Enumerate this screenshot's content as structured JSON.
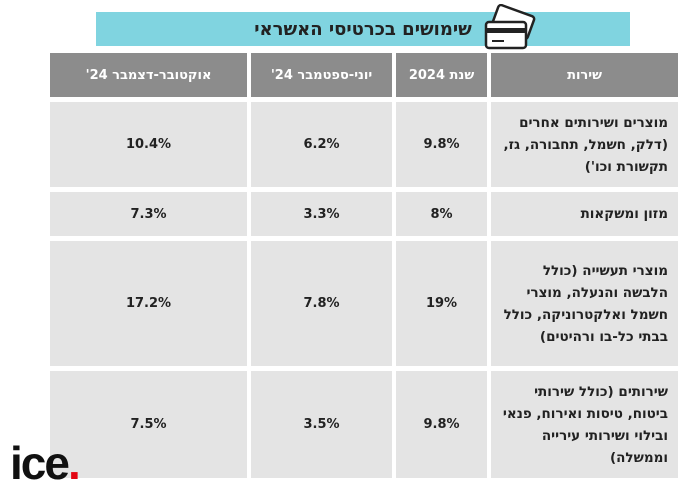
{
  "title": "שימושים בכרטיסי האשראי",
  "table": {
    "header": [
      "שירות",
      "שנת 2024",
      "יוני-ספטמבר 24'",
      "אוקטובר-דצמבר 24'"
    ],
    "rows": [
      [
        "מוצרים ושירותים אחרים (דלק, חשמל, תחבורה, גז, תקשורת וכו')",
        "9.8%",
        "6.2%",
        "10.4%"
      ],
      [
        "מזון ומשקאות",
        "8%",
        "3.3%",
        "7.3%"
      ],
      [
        "מוצרי תעשייה (כולל הלבשה והנעלה, מוצרי חשמל ואלקטרוניקה, כולל בבתי כל-בו ורהיטים)",
        "19%",
        "7.8%",
        "17.2%"
      ],
      [
        "שירותים (כולל שירותי ביטוח, טיסות ואירוח, פנאי ובילוי ושירותי עירייה וממשלה)",
        "9.8%",
        "3.5%",
        "7.5%"
      ]
    ]
  },
  "logo": {
    "text": "ice",
    "dot": "."
  }
}
